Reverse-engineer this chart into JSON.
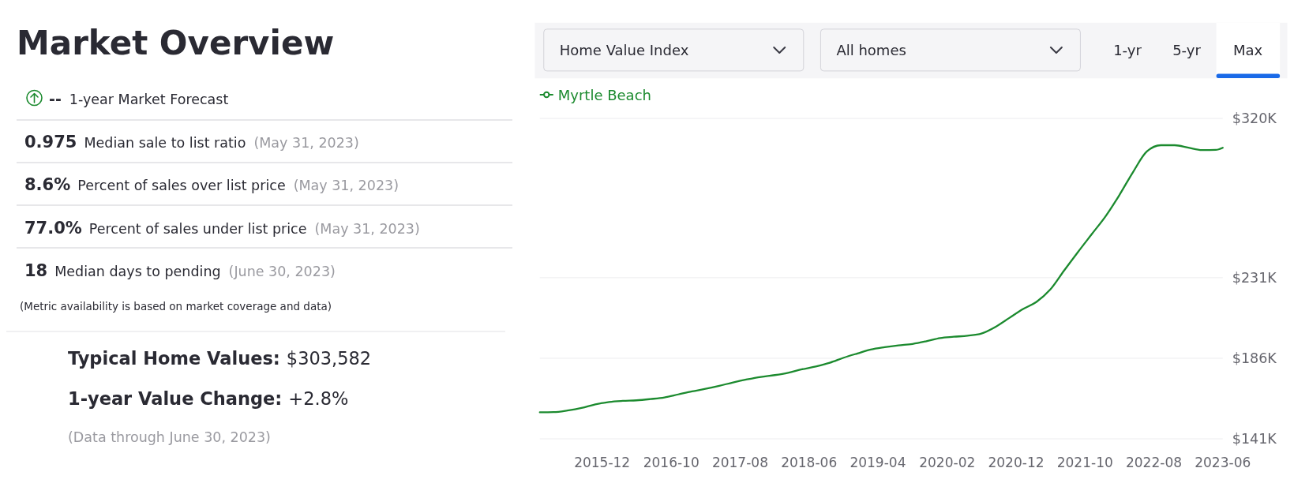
{
  "chart_data": [
    {
      "type": "other",
      "title": "Market Overview",
      "annotations": [
        "--",
        "1-year Market Forecast",
        "0.975",
        "Median sale to list ratio",
        "(May 31, 2023)",
        "8.6%",
        "Percent of sales over list price",
        "(May 31, 2023)",
        "77.0%",
        "Percent of sales under list price",
        "(May 31, 2023)",
        "18",
        "Median days to pending",
        "(June 30, 2023)",
        "(Metric availability is based on market coverage and data)",
        "Typical Home Values:",
        "$303,582",
        "1-year Value Change:",
        "+2.8%",
        "(Data through June 30, 2023)"
      ]
    },
    {
      "type": "line",
      "annotations": [
        "Home Value Index",
        "All homes",
        "1-yr",
        "5-yr",
        "Max"
      ],
      "x": [
        "2015-03",
        "2015-05",
        "2015-07",
        "2015-09",
        "2015-11",
        "2016-01",
        "2016-03",
        "2016-05",
        "2016-07",
        "2016-09",
        "2016-11",
        "2017-01",
        "2017-03",
        "2017-05",
        "2017-07",
        "2017-09",
        "2017-11",
        "2018-01",
        "2018-03",
        "2018-05",
        "2018-07",
        "2018-09",
        "2018-11",
        "2019-01",
        "2019-03",
        "2019-05",
        "2019-07",
        "2019-09",
        "2019-11",
        "2020-01",
        "2020-03",
        "2020-05",
        "2020-07",
        "2020-09",
        "2020-11",
        "2021-01",
        "2021-03",
        "2021-05",
        "2021-07",
        "2021-09",
        "2021-11",
        "2022-01",
        "2022-03",
        "2022-05",
        "2022-07",
        "2022-09",
        "2022-11",
        "2023-01",
        "2023-03",
        "2023-05",
        "2023-06"
      ],
      "series": [
        {
          "name": "Myrtle Beach",
          "color": "#1b8a2e",
          "values": [
            155.8,
            155.9,
            156.8,
            158.2,
            160.2,
            161.6,
            162.2,
            162.5,
            163.2,
            164.1,
            165.8,
            167.5,
            168.9,
            170.6,
            172.5,
            174.2,
            175.6,
            176.6,
            177.9,
            179.8,
            181.4,
            183.5,
            186.3,
            188.7,
            190.9,
            192.2,
            193.2,
            194.0,
            195.5,
            197.3,
            198.0,
            198.6,
            199.8,
            203.5,
            208.5,
            213.5,
            217.5,
            224.4,
            235.0,
            245.5,
            255.5,
            265.5,
            277.0,
            290.0,
            301.5,
            305.0,
            305.0,
            303.6,
            302.3,
            302.4,
            303.6
          ]
        }
      ],
      "xlim": [
        "2015-03",
        "2023-06"
      ],
      "xticks": [
        "2015-12",
        "2016-10",
        "2017-08",
        "2018-06",
        "2019-04",
        "2020-02",
        "2020-12",
        "2021-10",
        "2022-08",
        "2023-06"
      ],
      "ylim": [
        141,
        320
      ],
      "yticks": [
        {
          "value": 141,
          "label": "$141K"
        },
        {
          "value": 186,
          "label": "$186K"
        },
        {
          "value": 231,
          "label": "$231K"
        },
        {
          "value": 320,
          "label": "$320K"
        }
      ],
      "grid": "y",
      "legend": "top left"
    }
  ]
}
